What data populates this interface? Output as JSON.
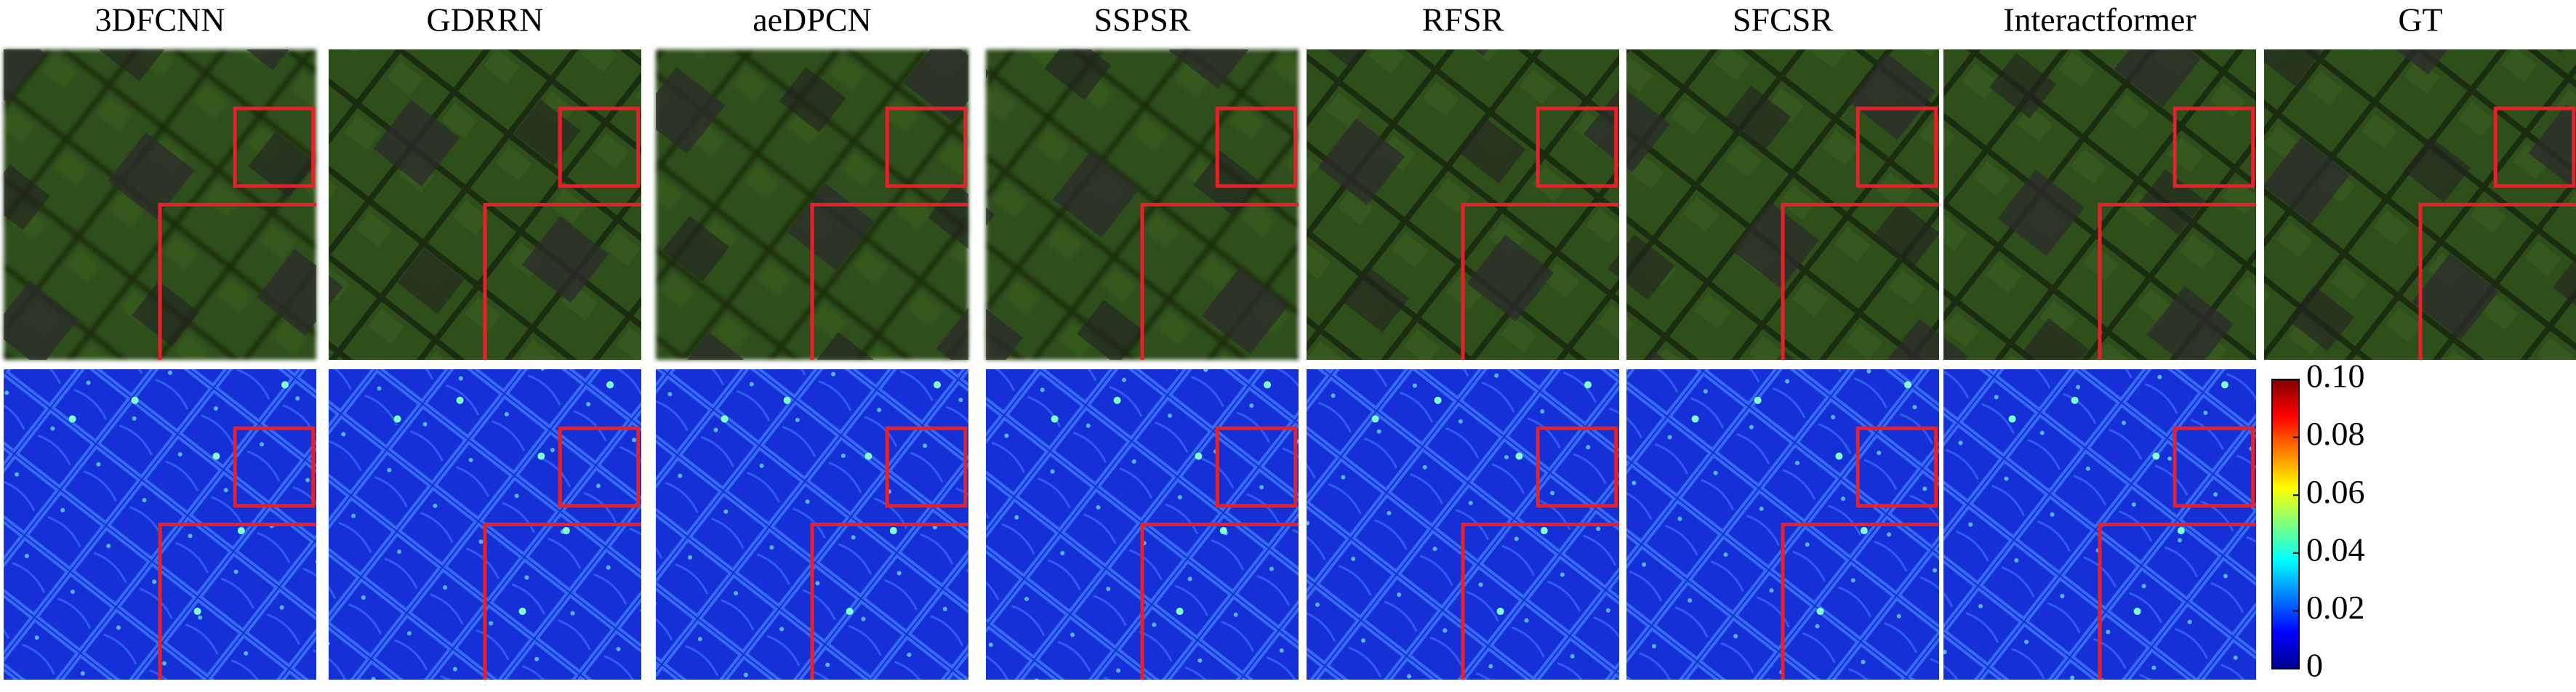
{
  "columns": [
    {
      "title": "3DFCNN"
    },
    {
      "title": "GDRRN"
    },
    {
      "title": "aeDPCN"
    },
    {
      "title": "SSPSR"
    },
    {
      "title": "RFSR"
    },
    {
      "title": "SFCSR"
    },
    {
      "title": "Interactformer"
    },
    {
      "title": "GT"
    }
  ],
  "colorbar": {
    "lim": [
      0,
      0.1
    ],
    "ticks": [
      {
        "value": 0.1,
        "label": "0.10"
      },
      {
        "value": 0.08,
        "label": "0.08"
      },
      {
        "value": 0.06,
        "label": "0.06"
      },
      {
        "value": 0.04,
        "label": "0.04"
      },
      {
        "value": 0.02,
        "label": "0.02"
      },
      0
    ]
  }
}
